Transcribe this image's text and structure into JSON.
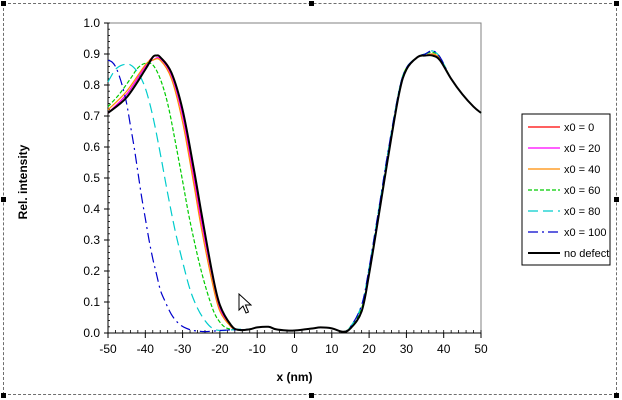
{
  "chart_data": {
    "type": "line",
    "title": "",
    "xlabel": "x (nm)",
    "ylabel": "Rel. intensity",
    "xlim": [
      -50,
      50
    ],
    "ylim": [
      0,
      1.0
    ],
    "xticks": [
      -50,
      -40,
      -30,
      -20,
      -10,
      0,
      10,
      20,
      30,
      40,
      50
    ],
    "yticks": [
      0.0,
      0.1,
      0.2,
      0.3,
      0.4,
      0.5,
      0.6,
      0.7,
      0.8,
      0.9,
      1.0
    ],
    "xtick_labels": [
      "-50",
      "-40",
      "-30",
      "-20",
      "-10",
      "0",
      "10",
      "20",
      "30",
      "40",
      "50"
    ],
    "ytick_labels": [
      "0.0",
      "0.1",
      "0.2",
      "0.3",
      "0.4",
      "0.5",
      "0.6",
      "0.7",
      "0.8",
      "0.9",
      "1.0"
    ],
    "grid": false,
    "legend_position": "right",
    "series": [
      {
        "name": "x0 = 0",
        "color": "#ff0000",
        "dash": "solid",
        "x": [
          -50,
          -45,
          -40,
          -38,
          -36,
          -33,
          -30,
          -27,
          -25,
          -22,
          -20,
          -17,
          -15,
          -12,
          -10,
          -7,
          -5,
          -2,
          0,
          3,
          5,
          7,
          10,
          13,
          15,
          18,
          20,
          23,
          25,
          28,
          30,
          33,
          35,
          37,
          39,
          42,
          45,
          48,
          50
        ],
        "y": [
          0.71,
          0.77,
          0.86,
          0.89,
          0.89,
          0.84,
          0.71,
          0.51,
          0.37,
          0.18,
          0.08,
          0.02,
          0.01,
          0.012,
          0.018,
          0.02,
          0.012,
          0.008,
          0.008,
          0.012,
          0.015,
          0.018,
          0.015,
          0.004,
          0.015,
          0.07,
          0.19,
          0.41,
          0.56,
          0.77,
          0.85,
          0.89,
          0.895,
          0.895,
          0.88,
          0.82,
          0.77,
          0.73,
          0.71
        ]
      },
      {
        "name": "x0 = 20",
        "color": "#ff00ff",
        "dash": "solid",
        "x": [
          -50,
          -45,
          -40,
          -38,
          -36,
          -33,
          -30,
          -27,
          -25,
          -22,
          -20,
          -17,
          -15,
          -12,
          -10,
          -7,
          -5,
          -2,
          0,
          3,
          5,
          7,
          10,
          13,
          15,
          18,
          20,
          23,
          25,
          28,
          30,
          33,
          35,
          37,
          39,
          42,
          45,
          48,
          50
        ],
        "y": [
          0.71,
          0.77,
          0.86,
          0.88,
          0.885,
          0.83,
          0.7,
          0.5,
          0.36,
          0.18,
          0.08,
          0.02,
          0.01,
          0.012,
          0.018,
          0.02,
          0.012,
          0.008,
          0.008,
          0.012,
          0.015,
          0.018,
          0.015,
          0.004,
          0.015,
          0.07,
          0.19,
          0.41,
          0.56,
          0.77,
          0.85,
          0.89,
          0.895,
          0.9,
          0.885,
          0.82,
          0.77,
          0.73,
          0.71
        ]
      },
      {
        "name": "x0 = 40",
        "color": "#ff8c00",
        "dash": "solid",
        "x": [
          -50,
          -45,
          -40,
          -38,
          -36,
          -33,
          -30,
          -27,
          -25,
          -22,
          -20,
          -17,
          -15,
          -12,
          -10,
          -7,
          -5,
          -2,
          0,
          3,
          5,
          7,
          10,
          13,
          15,
          18,
          20,
          23,
          25,
          28,
          30,
          33,
          35,
          37,
          39,
          42,
          45,
          48,
          50
        ],
        "y": [
          0.72,
          0.78,
          0.865,
          0.88,
          0.88,
          0.82,
          0.68,
          0.48,
          0.34,
          0.16,
          0.07,
          0.02,
          0.01,
          0.012,
          0.018,
          0.02,
          0.012,
          0.008,
          0.008,
          0.012,
          0.015,
          0.018,
          0.015,
          0.004,
          0.015,
          0.07,
          0.19,
          0.41,
          0.56,
          0.77,
          0.85,
          0.89,
          0.895,
          0.9,
          0.885,
          0.82,
          0.77,
          0.73,
          0.71
        ]
      },
      {
        "name": "x0 = 60",
        "color": "#00cc00",
        "dash": "4,2",
        "x": [
          -50,
          -47,
          -44,
          -42,
          -40,
          -38,
          -36,
          -34,
          -32,
          -30,
          -28,
          -25,
          -22,
          -20,
          -18,
          -15,
          -12,
          -10,
          -7,
          -5,
          -2,
          0,
          3,
          5,
          7,
          10,
          13,
          15,
          18,
          20,
          23,
          25,
          28,
          30,
          33,
          35,
          37,
          39,
          42,
          45,
          48,
          50
        ],
        "y": [
          0.73,
          0.77,
          0.82,
          0.855,
          0.87,
          0.865,
          0.82,
          0.74,
          0.62,
          0.49,
          0.36,
          0.2,
          0.08,
          0.035,
          0.015,
          0.01,
          0.012,
          0.018,
          0.02,
          0.012,
          0.008,
          0.008,
          0.012,
          0.015,
          0.018,
          0.015,
          0.004,
          0.02,
          0.08,
          0.2,
          0.42,
          0.57,
          0.78,
          0.855,
          0.89,
          0.9,
          0.905,
          0.89,
          0.82,
          0.77,
          0.73,
          0.71
        ]
      },
      {
        "name": "x0 = 80",
        "color": "#00cccc",
        "dash": "10,5",
        "x": [
          -50,
          -48,
          -46,
          -44,
          -42,
          -40,
          -38,
          -36,
          -34,
          -32,
          -30,
          -28,
          -26,
          -24,
          -22,
          -20,
          -17,
          -15,
          -12,
          -10,
          -7,
          -5,
          -2,
          0,
          3,
          5,
          7,
          10,
          13,
          15,
          18,
          20,
          23,
          25,
          28,
          30,
          33,
          35,
          37,
          39,
          42,
          45,
          48,
          50
        ],
        "y": [
          0.81,
          0.85,
          0.865,
          0.865,
          0.84,
          0.79,
          0.7,
          0.58,
          0.45,
          0.33,
          0.23,
          0.14,
          0.08,
          0.04,
          0.015,
          0.008,
          0.01,
          0.012,
          0.012,
          0.018,
          0.02,
          0.012,
          0.008,
          0.008,
          0.012,
          0.015,
          0.018,
          0.015,
          0.004,
          0.02,
          0.09,
          0.21,
          0.43,
          0.58,
          0.78,
          0.855,
          0.89,
          0.9,
          0.91,
          0.89,
          0.82,
          0.77,
          0.73,
          0.71
        ]
      },
      {
        "name": "x0 = 100",
        "color": "#0000cc",
        "dash": "10,4,2,4",
        "x": [
          -50,
          -49,
          -48,
          -47,
          -46,
          -45,
          -44,
          -43,
          -42,
          -41,
          -40,
          -39,
          -38,
          -37,
          -36,
          -35,
          -33,
          -31,
          -29,
          -27,
          -25,
          -23,
          -20,
          -17,
          -15,
          -12,
          -10,
          -7,
          -5,
          -2,
          0,
          3,
          5,
          7,
          10,
          13,
          15,
          18,
          20,
          23,
          25,
          28,
          30,
          33,
          35,
          37,
          39,
          42,
          45,
          48,
          50
        ],
        "y": [
          0.88,
          0.875,
          0.86,
          0.83,
          0.79,
          0.74,
          0.67,
          0.6,
          0.52,
          0.44,
          0.37,
          0.3,
          0.24,
          0.19,
          0.14,
          0.11,
          0.06,
          0.03,
          0.015,
          0.008,
          0.005,
          0.005,
          0.008,
          0.01,
          0.01,
          0.012,
          0.018,
          0.02,
          0.012,
          0.008,
          0.008,
          0.012,
          0.015,
          0.018,
          0.015,
          0.004,
          0.02,
          0.09,
          0.21,
          0.43,
          0.58,
          0.78,
          0.855,
          0.89,
          0.9,
          0.91,
          0.89,
          0.82,
          0.77,
          0.73,
          0.71
        ]
      },
      {
        "name": "no defect",
        "color": "#000000",
        "dash": "solid",
        "width": 2,
        "x": [
          -50,
          -45,
          -40,
          -38,
          -37,
          -36,
          -33,
          -30,
          -27,
          -25,
          -22,
          -20,
          -17,
          -15,
          -12,
          -10,
          -7,
          -5,
          -2,
          0,
          3,
          5,
          7,
          10,
          13,
          15,
          18,
          20,
          23,
          25,
          28,
          30,
          33,
          35,
          37,
          39,
          42,
          45,
          48,
          50
        ],
        "y": [
          0.71,
          0.76,
          0.85,
          0.89,
          0.895,
          0.89,
          0.84,
          0.72,
          0.53,
          0.39,
          0.19,
          0.09,
          0.025,
          0.01,
          0.012,
          0.018,
          0.02,
          0.012,
          0.008,
          0.008,
          0.012,
          0.015,
          0.018,
          0.015,
          0.004,
          0.015,
          0.07,
          0.19,
          0.41,
          0.56,
          0.77,
          0.85,
          0.89,
          0.895,
          0.895,
          0.88,
          0.82,
          0.77,
          0.73,
          0.71
        ]
      }
    ]
  }
}
